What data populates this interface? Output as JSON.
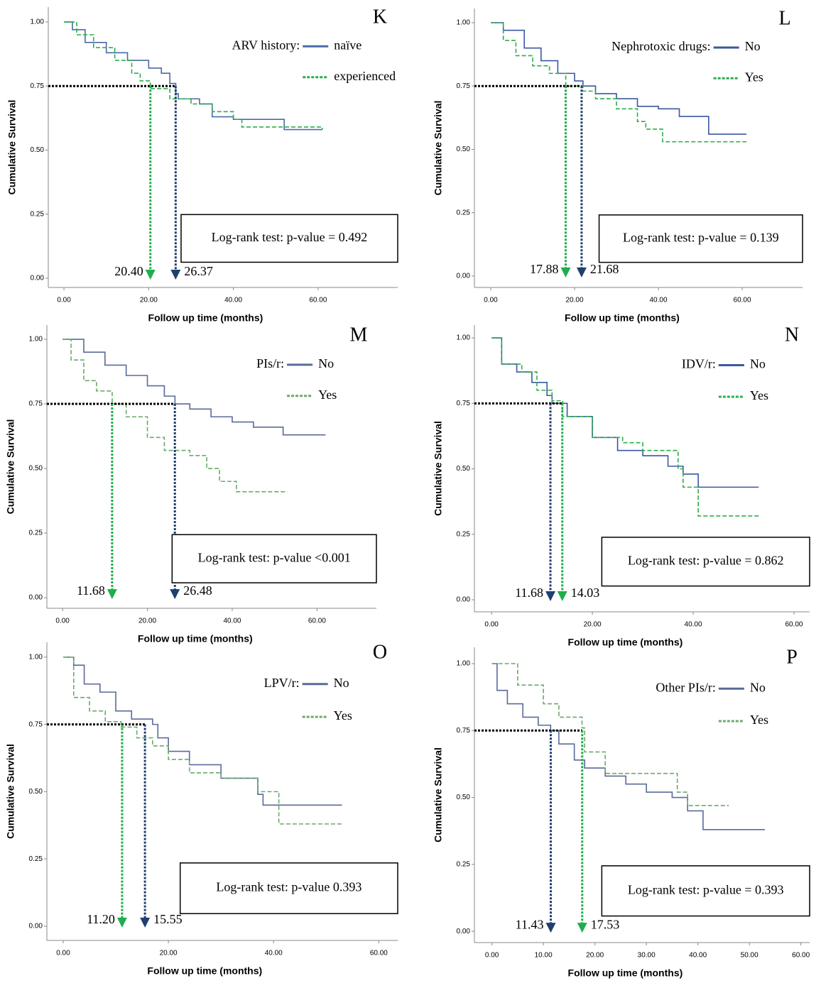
{
  "chart_data": [
    {
      "type": "step",
      "panel_label": "K",
      "x_label": "Follow up time (months)",
      "y_label": "Cumulative Survival",
      "xlim": [
        -3.7,
        78.8
      ],
      "ylim": [
        -0.036,
        1.058
      ],
      "xticks": [
        {
          "value": 0,
          "label": "0.00"
        },
        {
          "value": 20,
          "label": "20.00"
        },
        {
          "value": 40,
          "label": "40.00"
        },
        {
          "value": 60,
          "label": "60.00"
        }
      ],
      "yticks": [
        {
          "value": 0,
          "label": "0.00"
        },
        {
          "value": 0.25,
          "label": "0.25"
        },
        {
          "value": 0.5,
          "label": "0.50"
        },
        {
          "value": 0.75,
          "label": "0.75"
        },
        {
          "value": 1,
          "label": "1.00"
        }
      ],
      "legend_title": "ARV history:",
      "series": [
        {
          "name": "naïve",
          "color": "#4a6aa8",
          "dashed": false,
          "x": [
            0,
            2,
            5,
            10,
            15,
            20,
            23,
            25,
            26.4,
            27,
            32,
            35,
            40,
            52,
            61
          ],
          "values": [
            1.0,
            0.97,
            0.92,
            0.88,
            0.85,
            0.82,
            0.8,
            0.76,
            0.72,
            0.7,
            0.68,
            0.63,
            0.62,
            0.58,
            0.58
          ]
        },
        {
          "name": "experienced",
          "color": "#2cae4a",
          "dashed": true,
          "x": [
            0,
            3,
            7,
            12,
            16,
            18,
            20.4,
            25,
            30,
            35,
            40,
            42,
            61
          ],
          "values": [
            1.0,
            0.95,
            0.9,
            0.85,
            0.8,
            0.77,
            0.74,
            0.7,
            0.68,
            0.65,
            0.62,
            0.59,
            0.58
          ]
        }
      ],
      "reference_y": 0.75,
      "cut_points": [
        {
          "value": 20.4,
          "label": "20.40",
          "color": "#1fae4b"
        },
        {
          "value": 26.37,
          "label": "26.37",
          "color": "#1f3f6e"
        }
      ],
      "test_text": "Log-rank test: p-value = 0.492"
    },
    {
      "type": "step",
      "panel_label": "L",
      "x_label": "Follow up time (months)",
      "y_label": "Cumulative Survival",
      "xlim": [
        -3.9,
        74.4
      ],
      "ylim": [
        -0.045,
        1.056
      ],
      "xticks": [
        {
          "value": 0,
          "label": "0.00"
        },
        {
          "value": 20,
          "label": "20.00"
        },
        {
          "value": 40,
          "label": "40.00"
        },
        {
          "value": 60,
          "label": "60.00"
        }
      ],
      "yticks": [
        {
          "value": 0,
          "label": "0.00"
        },
        {
          "value": 0.25,
          "label": "0.25"
        },
        {
          "value": 0.5,
          "label": "0.50"
        },
        {
          "value": 0.75,
          "label": "0.75"
        },
        {
          "value": 1,
          "label": "1.00"
        }
      ],
      "legend_title": "Nephrotoxic drugs:",
      "series": [
        {
          "name": "No",
          "color": "#3a58a0",
          "dashed": false,
          "x": [
            0,
            3,
            8,
            12,
            16,
            20,
            22,
            25,
            30,
            35,
            40,
            45,
            52,
            61
          ],
          "values": [
            1.0,
            0.97,
            0.9,
            0.85,
            0.8,
            0.77,
            0.75,
            0.72,
            0.7,
            0.67,
            0.66,
            0.63,
            0.56,
            0.56
          ]
        },
        {
          "name": "Yes",
          "color": "#2cae4a",
          "dashed": true,
          "x": [
            0,
            3,
            6,
            10,
            14,
            17.9,
            22,
            25,
            30,
            35,
            37,
            41,
            61
          ],
          "values": [
            1.0,
            0.93,
            0.87,
            0.83,
            0.8,
            0.75,
            0.73,
            0.7,
            0.66,
            0.61,
            0.58,
            0.53,
            0.53
          ]
        }
      ],
      "reference_y": 0.75,
      "cut_points": [
        {
          "value": 17.88,
          "label": "17.88",
          "color": "#1fae4b"
        },
        {
          "value": 21.68,
          "label": "21.68",
          "color": "#1f3f6e"
        }
      ],
      "test_text": "Log-rank test: p-value = 0.139"
    },
    {
      "type": "step",
      "panel_label": "M",
      "x_label": "Follow up time (months)",
      "y_label": "Cumulative Survival",
      "xlim": [
        -3.7,
        74.0
      ],
      "ylim": [
        -0.041,
        1.055
      ],
      "xticks": [
        {
          "value": 0,
          "label": "0.00"
        },
        {
          "value": 20,
          "label": "20.00"
        },
        {
          "value": 40,
          "label": "40.00"
        },
        {
          "value": 60,
          "label": "60.00"
        }
      ],
      "yticks": [
        {
          "value": 0,
          "label": "0.00"
        },
        {
          "value": 0.25,
          "label": "0.25"
        },
        {
          "value": 0.5,
          "label": "0.50"
        },
        {
          "value": 0.75,
          "label": "0.75"
        },
        {
          "value": 1,
          "label": "1.00"
        }
      ],
      "legend_title": "PIs/r:",
      "series": [
        {
          "name": "No",
          "color": "#5a6a9a",
          "dashed": false,
          "x": [
            0,
            5,
            10,
            15,
            20,
            24,
            26.5,
            30,
            35,
            40,
            45,
            52,
            62
          ],
          "values": [
            1.0,
            0.95,
            0.9,
            0.86,
            0.82,
            0.78,
            0.75,
            0.73,
            0.7,
            0.68,
            0.66,
            0.63,
            0.63
          ]
        },
        {
          "name": "Yes",
          "color": "#6aaa6a",
          "dashed": true,
          "x": [
            0,
            2,
            5,
            8,
            11.7,
            15,
            20,
            24,
            30,
            34,
            37,
            41,
            53
          ],
          "values": [
            1.0,
            0.92,
            0.84,
            0.8,
            0.75,
            0.7,
            0.62,
            0.57,
            0.55,
            0.5,
            0.45,
            0.41,
            0.41
          ]
        }
      ],
      "reference_y": 0.75,
      "cut_points": [
        {
          "value": 11.68,
          "label": "11.68",
          "color": "#1fae4b"
        },
        {
          "value": 26.48,
          "label": "26.48",
          "color": "#1f3f6e"
        }
      ],
      "test_text": "Log-rank test: p-value <0.001"
    },
    {
      "type": "step",
      "panel_label": "N",
      "x_label": "Follow up time (months)",
      "y_label": "Cumulative Survival",
      "xlim": [
        -3.4,
        63.1
      ],
      "ylim": [
        -0.046,
        1.049
      ],
      "xticks": [
        {
          "value": 0,
          "label": "0.00"
        },
        {
          "value": 20,
          "label": "20.00"
        },
        {
          "value": 40,
          "label": "40.00"
        },
        {
          "value": 60,
          "label": "60.00"
        }
      ],
      "yticks": [
        {
          "value": 0,
          "label": "0.00"
        },
        {
          "value": 0.25,
          "label": "0.25"
        },
        {
          "value": 0.5,
          "label": "0.50"
        },
        {
          "value": 0.75,
          "label": "0.75"
        },
        {
          "value": 1,
          "label": "1.00"
        }
      ],
      "legend_title": "IDV/r:",
      "series": [
        {
          "name": "No",
          "color": "#3a58a0",
          "dashed": false,
          "x": [
            0,
            2,
            5,
            8,
            11,
            12,
            15,
            20,
            25,
            30,
            35,
            38,
            41,
            53
          ],
          "values": [
            1.0,
            0.9,
            0.87,
            0.83,
            0.78,
            0.75,
            0.7,
            0.62,
            0.57,
            0.55,
            0.51,
            0.48,
            0.43,
            0.43
          ]
        },
        {
          "name": "Yes",
          "color": "#2cae4a",
          "dashed": true,
          "x": [
            0,
            2,
            6,
            9,
            12,
            14.1,
            20,
            26,
            30,
            37,
            38,
            41,
            53
          ],
          "values": [
            1.0,
            0.9,
            0.87,
            0.8,
            0.76,
            0.7,
            0.62,
            0.6,
            0.57,
            0.5,
            0.43,
            0.32,
            0.32
          ]
        }
      ],
      "reference_y": 0.75,
      "cut_points": [
        {
          "value": 11.68,
          "label": "11.68",
          "color": "#1f3f6e"
        },
        {
          "value": 14.03,
          "label": "14.03",
          "color": "#1fae4b"
        }
      ],
      "test_text": "Log-rank test: p-value = 0.862"
    },
    {
      "type": "step",
      "panel_label": "O",
      "x_label": "Follow up time (months)",
      "y_label": "Cumulative Survival",
      "xlim": [
        -3.1,
        63.6
      ],
      "ylim": [
        -0.053,
        1.055
      ],
      "xticks": [
        {
          "value": 0,
          "label": "0.00"
        },
        {
          "value": 20,
          "label": "20.00"
        },
        {
          "value": 40,
          "label": "40.00"
        },
        {
          "value": 60,
          "label": "60.00"
        }
      ],
      "yticks": [
        {
          "value": 0,
          "label": "0.00"
        },
        {
          "value": 0.25,
          "label": "0.25"
        },
        {
          "value": 0.5,
          "label": "0.50"
        },
        {
          "value": 0.75,
          "label": "0.75"
        },
        {
          "value": 1,
          "label": "1.00"
        }
      ],
      "legend_title": "LPV/r:",
      "series": [
        {
          "name": "No",
          "color": "#5a6a9a",
          "dashed": false,
          "x": [
            0,
            2,
            4,
            7,
            10,
            13,
            17,
            18,
            20,
            24,
            30,
            37,
            38,
            53
          ],
          "values": [
            1.0,
            0.97,
            0.9,
            0.87,
            0.8,
            0.77,
            0.75,
            0.7,
            0.65,
            0.6,
            0.55,
            0.49,
            0.45,
            0.45
          ]
        },
        {
          "name": "Yes",
          "color": "#6aaa6a",
          "dashed": true,
          "x": [
            0,
            2,
            5,
            8,
            11,
            14,
            17,
            20,
            24,
            30,
            37,
            41,
            53
          ],
          "values": [
            1.0,
            0.85,
            0.8,
            0.76,
            0.74,
            0.7,
            0.67,
            0.62,
            0.57,
            0.55,
            0.5,
            0.38,
            0.38
          ]
        }
      ],
      "reference_y": 0.75,
      "cut_points": [
        {
          "value": 11.2,
          "label": "11.20",
          "color": "#1fae4b"
        },
        {
          "value": 15.55,
          "label": "15.55",
          "color": "#1f3f6e"
        }
      ],
      "test_text": "Log-rank test: p-value 0.393"
    },
    {
      "type": "step",
      "panel_label": "P",
      "x_label": "Follow up time (months)",
      "y_label": "Cumulative Survival",
      "xlim": [
        -3.4,
        61.7
      ],
      "ylim": [
        -0.042,
        1.061
      ],
      "xticks": [
        {
          "value": 0,
          "label": "0.00"
        },
        {
          "value": 10,
          "label": "10.00"
        },
        {
          "value": 20,
          "label": "20.00"
        },
        {
          "value": 30,
          "label": "30.00"
        },
        {
          "value": 40,
          "label": "40.00"
        },
        {
          "value": 50,
          "label": "50.00"
        },
        {
          "value": 60,
          "label": "60.00"
        }
      ],
      "yticks": [
        {
          "value": 0,
          "label": "0.00"
        },
        {
          "value": 0.25,
          "label": "0.25"
        },
        {
          "value": 0.5,
          "label": "0.50"
        },
        {
          "value": 0.75,
          "label": "0.75"
        },
        {
          "value": 1,
          "label": "1.00"
        }
      ],
      "legend_title": "Other PIs/r:",
      "series": [
        {
          "name": "No",
          "color": "#5a6a9a",
          "dashed": false,
          "x": [
            0,
            1,
            3,
            6,
            9,
            11.4,
            13,
            16,
            18,
            22,
            26,
            30,
            35,
            38,
            41,
            53
          ],
          "values": [
            1.0,
            0.9,
            0.85,
            0.8,
            0.77,
            0.75,
            0.7,
            0.64,
            0.61,
            0.58,
            0.55,
            0.52,
            0.5,
            0.45,
            0.38,
            0.38
          ]
        },
        {
          "name": "Yes",
          "color": "#6aaa6a",
          "dashed": true,
          "x": [
            0,
            5,
            10,
            13,
            17.5,
            18,
            22,
            36,
            38,
            46
          ],
          "values": [
            1.0,
            0.92,
            0.85,
            0.8,
            0.76,
            0.67,
            0.59,
            0.52,
            0.47,
            0.47
          ]
        }
      ],
      "reference_y": 0.75,
      "cut_points": [
        {
          "value": 11.43,
          "label": "11.43",
          "color": "#1f3f6e"
        },
        {
          "value": 17.53,
          "label": "17.53",
          "color": "#1fae4b"
        }
      ],
      "test_text": "Log-rank test: p-value = 0.393"
    }
  ]
}
